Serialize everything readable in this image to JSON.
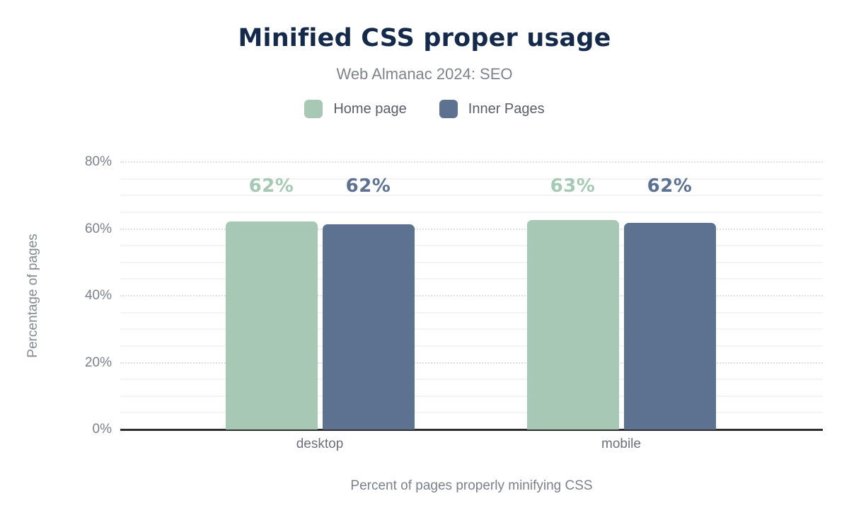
{
  "chart_data": {
    "type": "bar",
    "title": "Minified CSS proper usage",
    "subtitle": "Web Almanac 2024: SEO",
    "ylabel": "Percentage of pages",
    "xlabel": "Percent of pages properly minifying CSS",
    "categories": [
      "desktop",
      "mobile"
    ],
    "series": [
      {
        "name": "Home page",
        "color": "#a6c8b4",
        "values": [
          62,
          63
        ],
        "data_labels": [
          "62%",
          "63%"
        ],
        "bar_heights_precise_pct": [
          62.2,
          62.7
        ]
      },
      {
        "name": "Inner Pages",
        "color": "#5d7190",
        "values": [
          62,
          62
        ],
        "data_labels": [
          "62%",
          "62%"
        ],
        "bar_heights_precise_pct": [
          61.4,
          61.8
        ]
      }
    ],
    "ylim": [
      0,
      80
    ],
    "yticks": [
      0,
      20,
      40,
      60,
      80
    ],
    "ytick_labels": [
      "0%",
      "20%",
      "40%",
      "60%",
      "80%"
    ],
    "minor_grid_step_pct": 5,
    "grid": "horizontal; dotted major lines every 20%, faint minor lines every 5%",
    "legend_position": "top-center",
    "colors": {
      "title_text": "#15294b",
      "subtitle_text": "#7e838c",
      "axis_text": "#7b818a",
      "legend_text": "#585e68",
      "axis_line": "#2d2d2d",
      "major_gridline": "#dcdee1",
      "minor_gridline": "#f4f4f4",
      "background": "#ffffff"
    }
  }
}
